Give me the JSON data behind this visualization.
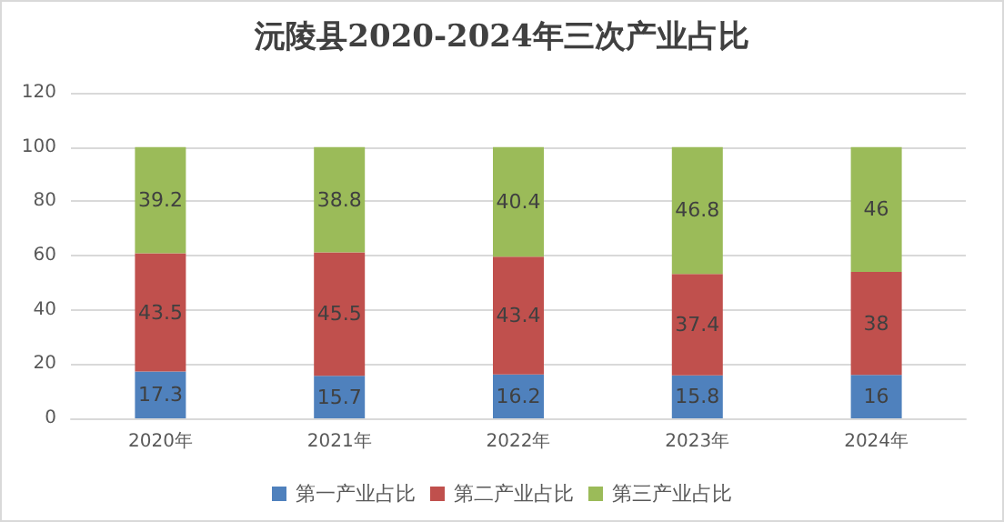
{
  "chart_data": {
    "type": "bar",
    "title": "沅陵县2020-2024年三次产业占比",
    "categories": [
      "2020年",
      "2021年",
      "2022年",
      "2023年",
      "2024年"
    ],
    "stacked": true,
    "data_labels": true,
    "grid": "y",
    "legend": "bottom",
    "ylim": [
      0,
      120
    ],
    "yticks": [
      0,
      20,
      40,
      60,
      80,
      100,
      120
    ],
    "series": [
      {
        "name": "第一产业占比",
        "color": "#4f81bd",
        "values": [
          17.3,
          15.7,
          16.2,
          15.8,
          16
        ]
      },
      {
        "name": "第二产业占比",
        "color": "#c0504d",
        "values": [
          43.5,
          45.5,
          43.4,
          37.4,
          38
        ]
      },
      {
        "name": "第三产业占比",
        "color": "#9bbb59",
        "values": [
          39.2,
          38.8,
          40.4,
          46.8,
          46
        ]
      }
    ]
  }
}
